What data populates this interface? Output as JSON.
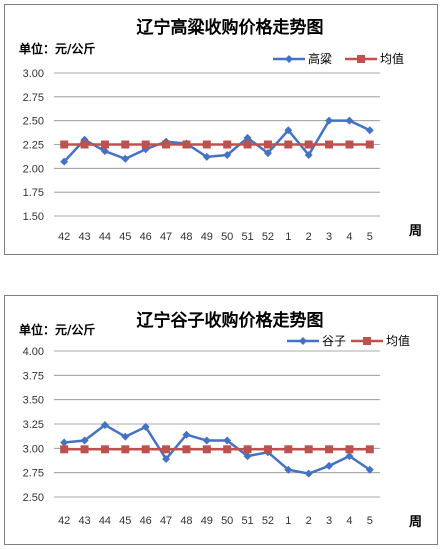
{
  "charts": [
    {
      "title": "辽宁高粱收购价格走势图",
      "unit_label": "单位：元/公斤",
      "xlabel": "周",
      "legend": {
        "series": "高粱",
        "average": "均值"
      }
    },
    {
      "title": "辽宁谷子收购价格走势图",
      "unit_label": "单位：元/公斤",
      "xlabel": "周",
      "legend": {
        "series": "谷子",
        "average": "均值"
      }
    }
  ],
  "colors": {
    "series": "#4472C4",
    "average": "#C0504D",
    "grid": "#8c8c8c"
  },
  "chart_data": [
    {
      "type": "line",
      "title": "辽宁高粱收购价格走势图",
      "xlabel": "周",
      "ylabel": "单位：元/公斤",
      "categories": [
        "42",
        "43",
        "44",
        "45",
        "46",
        "47",
        "48",
        "49",
        "50",
        "51",
        "52",
        "1",
        "2",
        "3",
        "4",
        "5"
      ],
      "ylim": [
        1.5,
        3.0
      ],
      "yticks": [
        1.5,
        1.75,
        2.0,
        2.25,
        2.5,
        2.75,
        3.0
      ],
      "ytick_labels": [
        "1.50",
        "1.75",
        "2.00",
        "2.25",
        "2.50",
        "2.75",
        "3.00"
      ],
      "grid": true,
      "legend_position": "top-right",
      "series": [
        {
          "name": "高粱",
          "marker": "diamond",
          "values": [
            2.07,
            2.3,
            2.18,
            2.1,
            2.2,
            2.28,
            2.26,
            2.12,
            2.14,
            2.32,
            2.16,
            2.4,
            2.14,
            2.5,
            2.5,
            2.4
          ]
        },
        {
          "name": "均值",
          "marker": "square",
          "values": [
            2.25,
            2.25,
            2.25,
            2.25,
            2.25,
            2.25,
            2.25,
            2.25,
            2.25,
            2.25,
            2.25,
            2.25,
            2.25,
            2.25,
            2.25,
            2.25
          ]
        }
      ]
    },
    {
      "type": "line",
      "title": "辽宁谷子收购价格走势图",
      "xlabel": "周",
      "ylabel": "单位：元/公斤",
      "categories": [
        "42",
        "43",
        "44",
        "45",
        "46",
        "47",
        "48",
        "49",
        "50",
        "51",
        "52",
        "1",
        "2",
        "3",
        "4",
        "5"
      ],
      "ylim": [
        2.5,
        4.0
      ],
      "yticks": [
        2.5,
        2.75,
        3.0,
        3.25,
        3.5,
        3.75,
        4.0
      ],
      "ytick_labels": [
        "2.50",
        "2.75",
        "3.00",
        "3.25",
        "3.50",
        "3.75",
        "4.00"
      ],
      "grid": true,
      "legend_position": "top-right",
      "series": [
        {
          "name": "谷子",
          "marker": "diamond",
          "values": [
            3.06,
            3.08,
            3.24,
            3.12,
            3.22,
            2.89,
            3.14,
            3.08,
            3.08,
            2.92,
            2.96,
            2.78,
            2.74,
            2.82,
            2.92,
            2.78
          ]
        },
        {
          "name": "均值",
          "marker": "square",
          "values": [
            2.99,
            2.99,
            2.99,
            2.99,
            2.99,
            2.99,
            2.99,
            2.99,
            2.99,
            2.99,
            2.99,
            2.99,
            2.99,
            2.99,
            2.99,
            2.99
          ]
        }
      ]
    }
  ]
}
